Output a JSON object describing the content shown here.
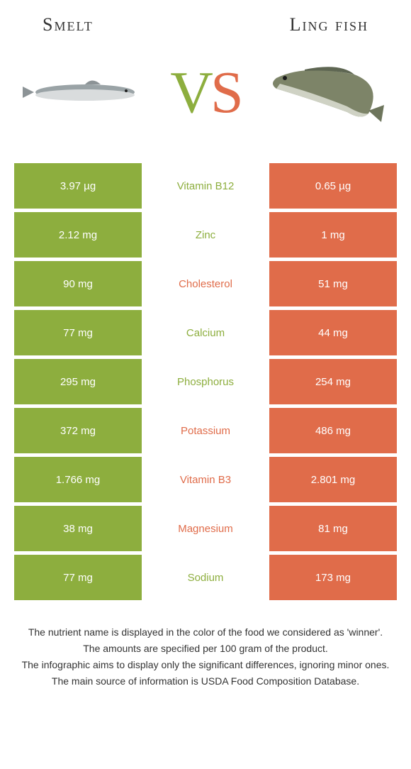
{
  "header": {
    "left": "Smelt",
    "right": "Ling fish"
  },
  "vs": {
    "v": "V",
    "s": "S"
  },
  "colors": {
    "left": "#8dae3e",
    "right": "#e06c4a",
    "background": "#ffffff"
  },
  "rows": [
    {
      "nutrient": "Vitamin B12",
      "left": "3.97 µg",
      "right": "0.65 µg",
      "winner": "left"
    },
    {
      "nutrient": "Zinc",
      "left": "2.12 mg",
      "right": "1 mg",
      "winner": "left"
    },
    {
      "nutrient": "Cholesterol",
      "left": "90 mg",
      "right": "51 mg",
      "winner": "right"
    },
    {
      "nutrient": "Calcium",
      "left": "77 mg",
      "right": "44 mg",
      "winner": "left"
    },
    {
      "nutrient": "Phosphorus",
      "left": "295 mg",
      "right": "254 mg",
      "winner": "left"
    },
    {
      "nutrient": "Potassium",
      "left": "372 mg",
      "right": "486 mg",
      "winner": "right"
    },
    {
      "nutrient": "Vitamin B3",
      "left": "1.766 mg",
      "right": "2.801 mg",
      "winner": "right"
    },
    {
      "nutrient": "Magnesium",
      "left": "38 mg",
      "right": "81 mg",
      "winner": "right"
    },
    {
      "nutrient": "Sodium",
      "left": "77 mg",
      "right": "173 mg",
      "winner": "left"
    }
  ],
  "footnotes": [
    "The nutrient name is displayed in the color of the food we considered as 'winner'.",
    "The amounts are specified per 100 gram of the product.",
    "The infographic aims to display only the significant differences, ignoring minor ones.",
    "The main source of information is USDA Food Composition Database."
  ]
}
